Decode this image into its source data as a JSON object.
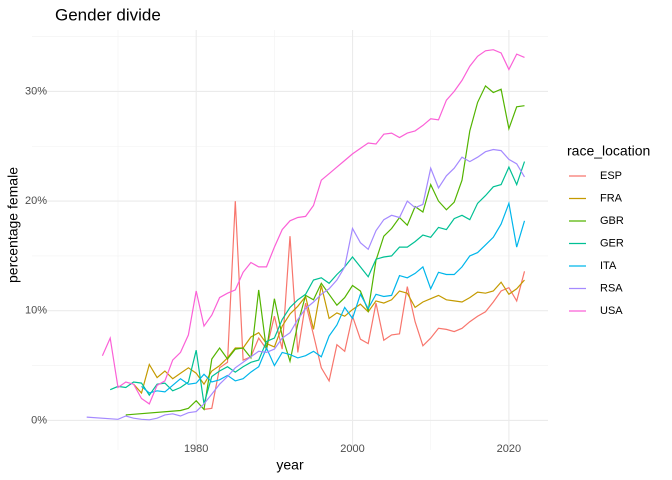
{
  "chart_data": {
    "type": "line",
    "title": "Gender divide",
    "x_label": "year",
    "y_label": "percentage female",
    "legend_title": "race_location",
    "legend": "right",
    "grid": true,
    "xlim": [
      1959,
      2025
    ],
    "xticks": [
      1980,
      2000,
      2020
    ],
    "x_minor_gridlines": [
      1970,
      1990,
      2010
    ],
    "ylim": [
      -2.7,
      35.6
    ],
    "yticks": [
      {
        "value": 0,
        "label": "0%"
      },
      {
        "value": 10,
        "label": "10%"
      },
      {
        "value": 20,
        "label": "20%"
      },
      {
        "value": 30,
        "label": "30%"
      }
    ],
    "y_minor_gridlines": [
      5,
      15,
      25,
      35
    ],
    "series": [
      {
        "name": "ESP",
        "color": "#F8766D",
        "x": [
          1981,
          1982,
          1983,
          1984,
          1985,
          1986,
          1987,
          1988,
          1989,
          1990,
          1991,
          1992,
          1993,
          1994,
          1995,
          1996,
          1997,
          1998,
          1999,
          2000,
          2001,
          2002,
          2003,
          2004,
          2005,
          2006,
          2007,
          2008,
          2009,
          2010,
          2011,
          2012,
          2013,
          2014,
          2015,
          2016,
          2017,
          2018,
          2019,
          2020,
          2021,
          2022
        ],
        "values": [
          1.0,
          1.1,
          4.8,
          5.3,
          20.0,
          5.5,
          5.8,
          7.5,
          6.5,
          9.5,
          6.5,
          16.8,
          6.2,
          10.7,
          7.8,
          4.8,
          3.6,
          6.9,
          6.3,
          9.5,
          7.4,
          7.0,
          10.7,
          7.3,
          7.8,
          7.9,
          12.2,
          9.0,
          6.8,
          7.5,
          8.4,
          8.3,
          8.1,
          8.4,
          9.0,
          9.5,
          9.9,
          10.8,
          11.8,
          12.1,
          10.9,
          13.6
        ]
      },
      {
        "name": "FRA",
        "color": "#C49A00",
        "x": [
          1972,
          1973,
          1974,
          1975,
          1976,
          1977,
          1978,
          1979,
          1980,
          1981,
          1982,
          1983,
          1984,
          1985,
          1986,
          1987,
          1988,
          1989,
          1990,
          1991,
          1992,
          1993,
          1994,
          1995,
          1996,
          1997,
          1998,
          1999,
          2000,
          2001,
          2002,
          2003,
          2004,
          2005,
          2006,
          2007,
          2008,
          2009,
          2010,
          2011,
          2012,
          2013,
          2014,
          2015,
          2016,
          2017,
          2018,
          2019,
          2020,
          2021,
          2022
        ],
        "values": [
          3.3,
          2.5,
          5.1,
          3.9,
          4.5,
          3.8,
          4.3,
          4.8,
          4.3,
          3.3,
          4.5,
          5.0,
          5.7,
          6.6,
          6.6,
          7.6,
          8.0,
          7.0,
          6.7,
          8.6,
          9.7,
          10.4,
          11.3,
          8.3,
          12.3,
          9.3,
          9.8,
          9.5,
          10.1,
          10.6,
          9.9,
          10.9,
          10.7,
          11.0,
          11.8,
          11.6,
          10.3,
          10.8,
          11.1,
          11.4,
          11.0,
          10.9,
          10.8,
          11.2,
          11.7,
          11.6,
          11.8,
          12.6,
          11.5,
          12.0,
          12.8
        ]
      },
      {
        "name": "GBR",
        "color": "#53B400",
        "x": [
          1971,
          1978,
          1979,
          1980,
          1981,
          1982,
          1983,
          1984,
          1985,
          1986,
          1987,
          1988,
          1989,
          1990,
          1991,
          1992,
          1993,
          1994,
          1995,
          1996,
          1997,
          1998,
          1999,
          2000,
          2001,
          2002,
          2003,
          2004,
          2005,
          2006,
          2007,
          2008,
          2009,
          2010,
          2011,
          2012,
          2013,
          2014,
          2015,
          2016,
          2017,
          2018,
          2019,
          2020,
          2021,
          2022
        ],
        "values": [
          0.5,
          0.9,
          1.1,
          1.8,
          1.0,
          5.6,
          6.6,
          5.6,
          6.5,
          6.6,
          5.7,
          11.9,
          6.4,
          11.1,
          7.7,
          5.4,
          8.8,
          11.4,
          11.0,
          12.5,
          11.5,
          10.5,
          11.2,
          12.3,
          11.8,
          10.0,
          14.6,
          16.8,
          17.5,
          18.5,
          17.8,
          19.5,
          19.0,
          21.5,
          20.0,
          19.2,
          19.9,
          21.9,
          26.4,
          29.0,
          30.5,
          29.9,
          30.2,
          26.6,
          28.6,
          28.7
        ]
      },
      {
        "name": "GER",
        "color": "#00C094",
        "x": [
          1969,
          1970,
          1971,
          1972,
          1973,
          1974,
          1975,
          1976,
          1977,
          1978,
          1979,
          1980,
          1981,
          1982,
          1983,
          1984,
          1985,
          1986,
          1987,
          1988,
          1989,
          1990,
          1991,
          1992,
          1993,
          1994,
          1995,
          1996,
          1997,
          1998,
          1999,
          2000,
          2001,
          2002,
          2003,
          2004,
          2005,
          2006,
          2007,
          2008,
          2009,
          2010,
          2011,
          2012,
          2013,
          2014,
          2015,
          2016,
          2017,
          2018,
          2019,
          2020,
          2021,
          2022
        ],
        "values": [
          2.8,
          3.1,
          3.0,
          3.5,
          3.4,
          2.3,
          3.3,
          3.4,
          2.7,
          3.0,
          3.5,
          6.4,
          1.5,
          4.0,
          4.5,
          4.9,
          4.4,
          4.9,
          5.3,
          5.5,
          7.2,
          7.5,
          9.2,
          10.3,
          11.0,
          11.5,
          12.8,
          13.0,
          12.5,
          13.3,
          14.0,
          14.9,
          14.0,
          13.1,
          14.7,
          14.9,
          15.0,
          15.8,
          15.8,
          16.3,
          16.9,
          16.7,
          17.6,
          17.4,
          18.4,
          18.7,
          18.3,
          19.8,
          20.5,
          21.3,
          21.5,
          23.1,
          21.5,
          23.6
        ]
      },
      {
        "name": "ITA",
        "color": "#00B6EB",
        "x": [
          1973,
          1974,
          1975,
          1976,
          1977,
          1978,
          1979,
          1980,
          1981,
          1982,
          1983,
          1984,
          1985,
          1986,
          1987,
          1988,
          1989,
          1990,
          1991,
          1992,
          1993,
          1994,
          1995,
          1996,
          1997,
          1998,
          1999,
          2000,
          2001,
          2002,
          2003,
          2004,
          2005,
          2006,
          2007,
          2008,
          2009,
          2010,
          2011,
          2012,
          2013,
          2014,
          2015,
          2016,
          2017,
          2018,
          2019,
          2020,
          2021,
          2022
        ],
        "values": [
          3.1,
          2.5,
          2.7,
          2.6,
          3.2,
          3.8,
          3.3,
          3.4,
          4.2,
          3.5,
          3.7,
          4.1,
          3.6,
          3.8,
          4.4,
          4.9,
          6.6,
          5.0,
          6.2,
          6.0,
          5.7,
          5.9,
          6.3,
          5.8,
          7.7,
          8.7,
          10.3,
          9.3,
          11.5,
          10.2,
          11.5,
          11.3,
          11.4,
          13.2,
          13.0,
          13.4,
          14.0,
          12.0,
          13.5,
          13.3,
          13.3,
          14.0,
          15.0,
          15.3,
          16.0,
          16.7,
          17.9,
          19.8,
          15.8,
          18.2
        ]
      },
      {
        "name": "RSA",
        "color": "#A58AFF",
        "x": [
          1966,
          1970,
          1971,
          1972,
          1973,
          1974,
          1975,
          1976,
          1977,
          1978,
          1979,
          1980,
          1981,
          1982,
          1983,
          1984,
          1985,
          1986,
          1987,
          1988,
          1989,
          1990,
          1991,
          1992,
          1993,
          1994,
          1995,
          1996,
          1997,
          1998,
          1999,
          2000,
          2001,
          2002,
          2003,
          2004,
          2005,
          2006,
          2007,
          2008,
          2009,
          2010,
          2011,
          2012,
          2013,
          2014,
          2015,
          2016,
          2017,
          2018,
          2019,
          2020,
          2021,
          2022
        ],
        "values": [
          0.3,
          0.1,
          0.4,
          0.2,
          0.1,
          0.05,
          0.2,
          0.5,
          0.6,
          0.4,
          0.7,
          0.8,
          1.5,
          2.4,
          3.3,
          4.0,
          4.8,
          5.3,
          5.8,
          6.3,
          6.2,
          6.5,
          7.5,
          8.0,
          9.2,
          10.2,
          10.8,
          11.5,
          12.0,
          12.8,
          14.0,
          17.5,
          16.2,
          15.6,
          17.3,
          18.3,
          18.7,
          18.5,
          20.0,
          19.4,
          19.7,
          23.0,
          21.2,
          22.3,
          23.0,
          24.0,
          23.6,
          24.0,
          24.5,
          24.7,
          24.6,
          23.8,
          23.4,
          22.2
        ]
      },
      {
        "name": "USA",
        "color": "#FB61D7",
        "x": [
          1968,
          1969,
          1970,
          1971,
          1972,
          1973,
          1974,
          1975,
          1976,
          1977,
          1978,
          1979,
          1980,
          1981,
          1982,
          1983,
          1984,
          1985,
          1986,
          1987,
          1988,
          1989,
          1990,
          1991,
          1992,
          1993,
          1994,
          1995,
          1996,
          1997,
          1998,
          1999,
          2000,
          2001,
          2002,
          2003,
          2004,
          2005,
          2006,
          2007,
          2008,
          2009,
          2010,
          2011,
          2012,
          2013,
          2014,
          2015,
          2016,
          2017,
          2018,
          2019,
          2020,
          2021,
          2022
        ],
        "values": [
          5.9,
          7.5,
          3.0,
          3.5,
          3.3,
          2.0,
          1.5,
          3.2,
          3.6,
          5.5,
          6.2,
          7.8,
          11.8,
          8.6,
          9.6,
          11.2,
          11.6,
          11.9,
          13.5,
          14.4,
          14.0,
          14.0,
          15.8,
          17.4,
          18.2,
          18.5,
          18.6,
          19.6,
          21.9,
          22.5,
          23.1,
          23.7,
          24.3,
          24.8,
          25.3,
          25.2,
          26.1,
          26.2,
          25.8,
          26.2,
          26.4,
          26.9,
          27.5,
          27.4,
          29.2,
          30.0,
          31.0,
          32.3,
          33.2,
          33.7,
          33.8,
          33.5,
          32.0,
          33.4,
          33.1
        ]
      }
    ]
  }
}
